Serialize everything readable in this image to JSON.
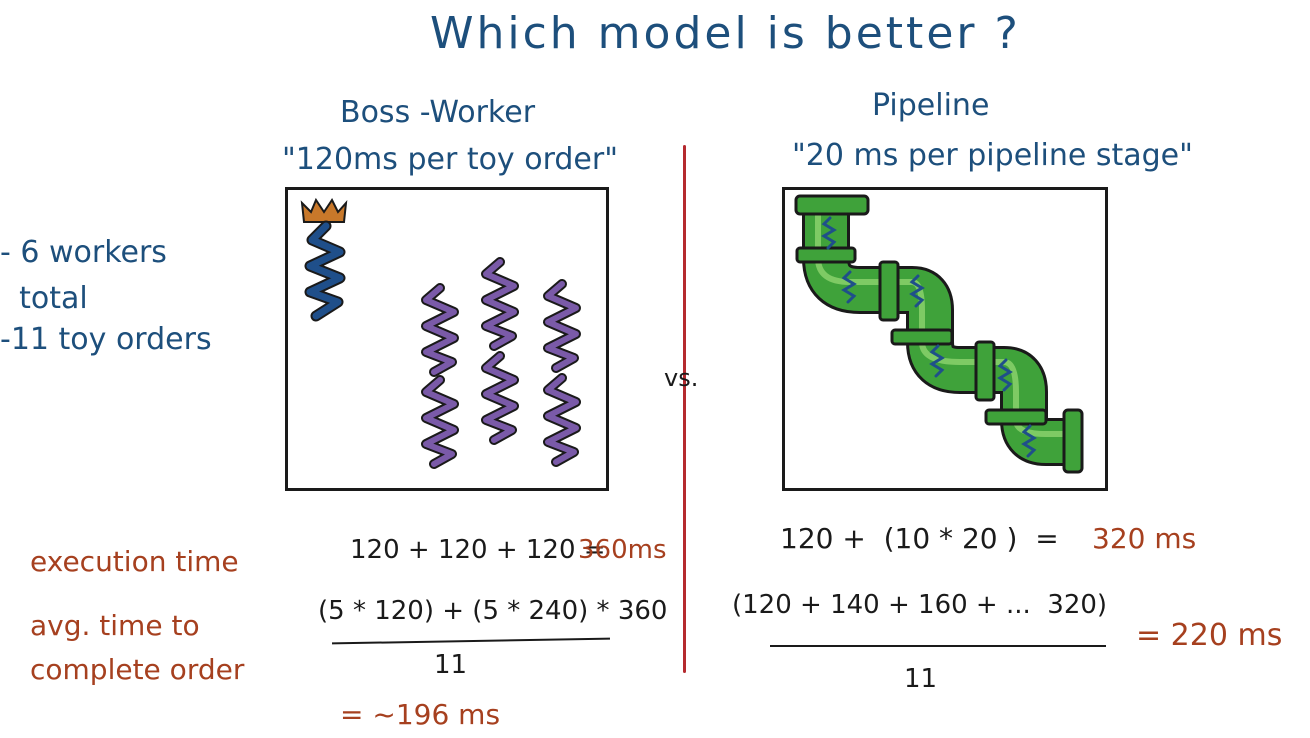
{
  "title": "Which model is better ?",
  "boss_worker": {
    "heading": "Boss -Worker",
    "subtitle": "\"120ms per toy order\"",
    "exec_eq": "120 + 120 + 120 =",
    "exec_result": "360ms",
    "avg_numerator": "(5 * 120) + (5 * 240) * 360",
    "avg_denominator": "11",
    "avg_result": "= ~196 ms"
  },
  "pipeline": {
    "heading": "Pipeline",
    "subtitle": "\"20 ms per pipeline stage\"",
    "exec_eq": "120 +  (10 * 20 )  =",
    "exec_result": "320 ms",
    "avg_numerator": "(120 + 140 + 160 + ...  320)",
    "avg_denominator": "11",
    "avg_result": "= 220 ms"
  },
  "notes": {
    "workers": "- 6 workers\n  total",
    "orders": "-11 toy orders"
  },
  "vs_label": "vs.",
  "row_labels": {
    "execution": "execution time",
    "average": "avg. time to\ncomplete order"
  },
  "colors": {
    "blue_ink": "#1d4f7c",
    "red_ink": "#a6401f",
    "divider": "#b52a2f",
    "boss_thread": "#1f4f8a",
    "worker_thread": "#7a5aa8",
    "crown": "#c8782a",
    "pipe": "#3fa23a"
  }
}
